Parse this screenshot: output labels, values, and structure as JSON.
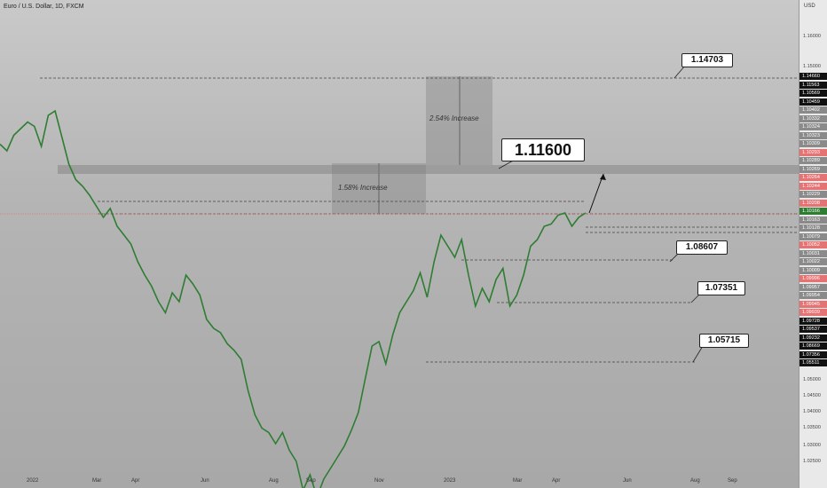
{
  "title": "Euro / U.S. Dollar, 1D, FXCM",
  "currency": "USD",
  "colors": {
    "line": "#2e7d32",
    "accent_red": "#e57373",
    "black_chip": "#111111",
    "green_chip": "#2e7d32",
    "gray_chip": "#8a8a8a"
  },
  "y_ticks": [
    "1.16000",
    "1.15000",
    "1.05000",
    "1.04500",
    "1.04000",
    "1.03500",
    "1.03000",
    "1.02500"
  ],
  "price_chips": [
    {
      "label": "1.14660",
      "kind": "black"
    },
    {
      "label": "1.11563",
      "kind": "black"
    },
    {
      "label": "1.10569",
      "kind": "black"
    },
    {
      "label": "1.10459",
      "kind": "black"
    },
    {
      "label": "1.10402",
      "kind": "gray"
    },
    {
      "label": "1.10332",
      "kind": "gray"
    },
    {
      "label": "1.10324",
      "kind": "gray"
    },
    {
      "label": "1.10323",
      "kind": "gray"
    },
    {
      "label": "1.10309",
      "kind": "gray"
    },
    {
      "label": "1.10293",
      "kind": "red"
    },
    {
      "label": "1.10289",
      "kind": "gray"
    },
    {
      "label": "1.10269",
      "kind": "gray"
    },
    {
      "label": "1.10264",
      "kind": "red"
    },
    {
      "label": "1.10244",
      "kind": "red"
    },
    {
      "label": "1.10229",
      "kind": "gray"
    },
    {
      "label": "1.10208",
      "kind": "red"
    },
    {
      "label": "1.10166",
      "kind": "green"
    },
    {
      "label": "1.10163",
      "kind": "gray"
    },
    {
      "label": "1.10128",
      "kind": "gray"
    },
    {
      "label": "1.10079",
      "kind": "gray"
    },
    {
      "label": "1.10052",
      "kind": "red"
    },
    {
      "label": "1.10031",
      "kind": "gray"
    },
    {
      "label": "1.10022",
      "kind": "gray"
    },
    {
      "label": "1.10009",
      "kind": "gray"
    },
    {
      "label": "1.09996",
      "kind": "red"
    },
    {
      "label": "1.09957",
      "kind": "gray"
    },
    {
      "label": "1.09954",
      "kind": "gray"
    },
    {
      "label": "1.09945",
      "kind": "red"
    },
    {
      "label": "1.09939",
      "kind": "red"
    },
    {
      "label": "1.09728",
      "kind": "black"
    },
    {
      "label": "1.09537",
      "kind": "black"
    },
    {
      "label": "1.09232",
      "kind": "black"
    },
    {
      "label": "1.08669",
      "kind": "black"
    },
    {
      "label": "1.07356",
      "kind": "black"
    },
    {
      "label": "1.05511",
      "kind": "black"
    }
  ],
  "x_ticks": [
    "2022",
    "Mar",
    "Apr",
    "Jun",
    "Aug",
    "Sep",
    "Nov",
    "2023",
    "Mar",
    "Apr",
    "Jun",
    "Aug",
    "Sep"
  ],
  "callouts": {
    "c1": "1.14703",
    "c2": "1.11600",
    "c3": "1.08607",
    "c4": "1.07351",
    "c5": "1.05715"
  },
  "boxes": {
    "b1": "1.58% Increase",
    "b2": "2.54% Increase"
  },
  "chart_data": {
    "type": "line",
    "series": [
      {
        "values": [
          1.131,
          1.128,
          1.135,
          1.138,
          1.141,
          1.139,
          1.13,
          1.144,
          1.146,
          1.134,
          1.122,
          1.115,
          1.112,
          1.108,
          1.103,
          1.098,
          1.102,
          1.094,
          1.09,
          1.086,
          1.078,
          1.072,
          1.067,
          1.06,
          1.055,
          1.064,
          1.06,
          1.072,
          1.068,
          1.063,
          1.052,
          1.048,
          1.046,
          1.041,
          1.038,
          1.034,
          1.02,
          1.009,
          1.003,
          1.001,
          0.996,
          1.001,
          0.993,
          0.988,
          0.975,
          0.982,
          0.972,
          0.98,
          0.985,
          0.99,
          0.995,
          1.002,
          1.01,
          1.025,
          1.04,
          1.042,
          1.032,
          1.045,
          1.055,
          1.06,
          1.065,
          1.073,
          1.062,
          1.078,
          1.09,
          1.085,
          1.08,
          1.088,
          1.072,
          1.058,
          1.066,
          1.06,
          1.07,
          1.075,
          1.058,
          1.063,
          1.072,
          1.085,
          1.088,
          1.094,
          1.095,
          1.099,
          1.1,
          1.094,
          1.098,
          1.1
        ]
      }
    ],
    "ylim": [
      0.98,
      1.18
    ]
  }
}
